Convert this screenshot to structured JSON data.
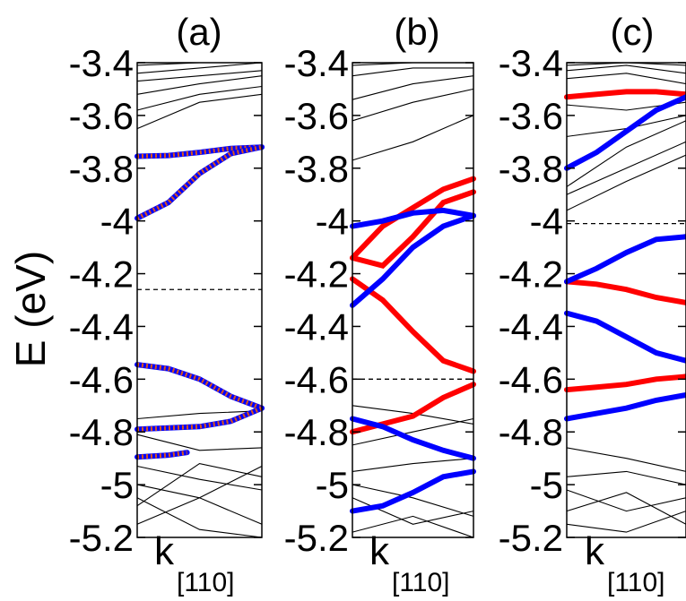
{
  "figure": {
    "ylabel": "E (eV)",
    "xlabel_main": "k",
    "xlabel_sub": "[110]"
  },
  "colors": {
    "red": "#ff0000",
    "blue": "#0000ff",
    "band": "#000000",
    "dotted_band": "#d9541e"
  },
  "chart_data": [
    {
      "type": "line",
      "panel": "(a)",
      "title": "(a)",
      "ylabel": "E (eV)",
      "xlabel": "k[110]",
      "ylim": [
        -5.2,
        -3.4
      ],
      "yticks": [
        -3.4,
        -3.6,
        -3.8,
        -4,
        -4.2,
        -4.4,
        -4.6,
        -4.8,
        -5,
        -5.2
      ],
      "ytick_labels": [
        "-3.4",
        "-3.6",
        "-3.8",
        "-4",
        "-4.2",
        "-4.4",
        "-4.6",
        "-4.8",
        "-5",
        "-5.2"
      ],
      "fermi_level": -4.26,
      "highlighted_bands": [
        {
          "color": "red+blue",
          "x": [
            0,
            0.25,
            0.5,
            0.75,
            1
          ],
          "y": [
            -3.755,
            -3.752,
            -3.74,
            -3.725,
            -3.72
          ]
        },
        {
          "color": "red+blue",
          "x": [
            0,
            0.25,
            0.5,
            0.75,
            1
          ],
          "y": [
            -3.99,
            -3.93,
            -3.82,
            -3.745,
            -3.72
          ]
        },
        {
          "color": "red+blue",
          "x": [
            0,
            0.25,
            0.5,
            0.75,
            1
          ],
          "y": [
            -4.545,
            -4.56,
            -4.6,
            -4.665,
            -4.71
          ]
        },
        {
          "color": "red+blue",
          "x": [
            0,
            0.25,
            0.5,
            0.75,
            1
          ],
          "y": [
            -4.79,
            -4.785,
            -4.78,
            -4.76,
            -4.71
          ]
        },
        {
          "color": "red+blue",
          "x": [
            0,
            0.12,
            0.25,
            0.4
          ],
          "y": [
            -4.895,
            -4.892,
            -4.888,
            -4.878
          ]
        }
      ],
      "bands": [
        {
          "x": [
            0,
            0.5,
            1
          ],
          "y": [
            -3.41,
            -3.4,
            -3.4
          ]
        },
        {
          "x": [
            0,
            0.5,
            1
          ],
          "y": [
            -3.44,
            -3.42,
            -3.4
          ]
        },
        {
          "x": [
            0,
            0.5,
            1
          ],
          "y": [
            -3.47,
            -3.45,
            -3.43
          ]
        },
        {
          "x": [
            0,
            0.5,
            1
          ],
          "y": [
            -3.52,
            -3.48,
            -3.45
          ]
        },
        {
          "x": [
            0,
            0.5,
            1
          ],
          "y": [
            -3.58,
            -3.52,
            -3.49
          ]
        },
        {
          "x": [
            0,
            0.5,
            1
          ],
          "y": [
            -3.65,
            -3.55,
            -3.52
          ]
        },
        {
          "x": [
            0,
            0.5,
            1
          ],
          "y": [
            -4.75,
            -4.73,
            -4.72
          ]
        },
        {
          "x": [
            0,
            0.5,
            1
          ],
          "y": [
            -4.81,
            -4.87,
            -4.86
          ]
        },
        {
          "x": [
            0,
            0.5,
            1
          ],
          "y": [
            -4.93,
            -4.98,
            -5.02
          ]
        },
        {
          "x": [
            0,
            0.5,
            1
          ],
          "y": [
            -5.0,
            -5.05,
            -5.15
          ]
        },
        {
          "x": [
            0,
            0.5,
            1
          ],
          "y": [
            -5.05,
            -5.17,
            -5.2
          ]
        },
        {
          "x": [
            0,
            0.5,
            1
          ],
          "y": [
            -5.08,
            -4.92,
            -4.97
          ]
        },
        {
          "x": [
            0,
            0.5,
            1
          ],
          "y": [
            -5.15,
            -5.05,
            -4.93
          ]
        }
      ]
    },
    {
      "type": "line",
      "panel": "(b)",
      "title": "(b)",
      "xlabel": "k[110]",
      "ylim": [
        -5.2,
        -3.4
      ],
      "yticks": [
        -3.4,
        -3.6,
        -3.8,
        -4,
        -4.2,
        -4.4,
        -4.6,
        -4.8,
        -5,
        -5.2
      ],
      "ytick_labels": [
        "-3.4",
        "-3.6",
        "-3.8",
        "-4",
        "-4.2",
        "-4.4",
        "-4.6",
        "-4.8",
        "-5",
        "-5.2"
      ],
      "fermi_level": -4.6,
      "highlighted_bands": [
        {
          "color": "red",
          "x": [
            0,
            0.25,
            0.5,
            0.75,
            1
          ],
          "y": [
            -4.14,
            -4.02,
            -3.95,
            -3.88,
            -3.84
          ]
        },
        {
          "color": "red",
          "x": [
            0,
            0.25,
            0.5,
            0.75,
            1
          ],
          "y": [
            -4.14,
            -4.17,
            -4.06,
            -3.93,
            -3.89
          ]
        },
        {
          "color": "red",
          "x": [
            0,
            0.25,
            0.5,
            0.75,
            1
          ],
          "y": [
            -4.22,
            -4.3,
            -4.42,
            -4.53,
            -4.57
          ]
        },
        {
          "color": "red",
          "x": [
            0,
            0.25,
            0.5,
            0.75,
            1
          ],
          "y": [
            -4.8,
            -4.77,
            -4.74,
            -4.67,
            -4.62
          ]
        },
        {
          "color": "blue",
          "x": [
            0,
            0.25,
            0.5,
            0.75,
            1
          ],
          "y": [
            -4.02,
            -4.0,
            -3.97,
            -3.96,
            -3.98
          ]
        },
        {
          "color": "blue",
          "x": [
            0,
            0.25,
            0.5,
            0.75,
            1
          ],
          "y": [
            -4.32,
            -4.22,
            -4.1,
            -4.02,
            -3.98
          ]
        },
        {
          "color": "blue",
          "x": [
            0,
            0.25,
            0.5,
            0.75,
            1
          ],
          "y": [
            -4.75,
            -4.78,
            -4.83,
            -4.87,
            -4.9
          ]
        },
        {
          "color": "blue",
          "x": [
            0,
            0.25,
            0.5,
            0.75,
            1
          ],
          "y": [
            -5.1,
            -5.08,
            -5.03,
            -4.97,
            -4.95
          ]
        }
      ],
      "bands": [
        {
          "x": [
            0,
            0.5,
            1
          ],
          "y": [
            -3.41,
            -3.4,
            -3.4
          ]
        },
        {
          "x": [
            0,
            0.5,
            1
          ],
          "y": [
            -3.45,
            -3.42,
            -3.42
          ]
        },
        {
          "x": [
            0,
            0.5,
            1
          ],
          "y": [
            -3.54,
            -3.48,
            -3.45
          ]
        },
        {
          "x": [
            0,
            0.5,
            1
          ],
          "y": [
            -3.62,
            -3.55,
            -3.5
          ]
        },
        {
          "x": [
            0,
            0.5,
            1
          ],
          "y": [
            -3.77,
            -3.7,
            -3.6
          ]
        },
        {
          "x": [
            0,
            0.5,
            1
          ],
          "y": [
            -4.7,
            -4.73,
            -4.77
          ]
        },
        {
          "x": [
            0,
            0.5,
            1
          ],
          "y": [
            -4.85,
            -4.8,
            -4.75
          ]
        },
        {
          "x": [
            0,
            0.5,
            1
          ],
          "y": [
            -4.95,
            -4.92,
            -4.9
          ]
        },
        {
          "x": [
            0,
            0.5,
            1
          ],
          "y": [
            -5.0,
            -5.05,
            -5.12
          ]
        },
        {
          "x": [
            0,
            0.5,
            1
          ],
          "y": [
            -5.05,
            -5.15,
            -5.1
          ]
        },
        {
          "x": [
            0,
            0.5,
            1
          ],
          "y": [
            -5.18,
            -5.12,
            -5.2
          ]
        }
      ]
    },
    {
      "type": "line",
      "panel": "(c)",
      "title": "(c)",
      "xlabel": "k[110]",
      "ylim": [
        -5.2,
        -3.4
      ],
      "yticks": [
        -3.4,
        -3.6,
        -3.8,
        -4,
        -4.2,
        -4.4,
        -4.6,
        -4.8,
        -5,
        -5.2
      ],
      "ytick_labels": [
        "-3.4",
        "-3.6",
        "-3.8",
        "-4",
        "-4.2",
        "-4.4",
        "-4.6",
        "-4.8",
        "-5",
        "-5.2"
      ],
      "fermi_level": -4.01,
      "highlighted_bands": [
        {
          "color": "red",
          "x": [
            0,
            0.25,
            0.5,
            0.75,
            1
          ],
          "y": [
            -3.53,
            -3.52,
            -3.51,
            -3.51,
            -3.52
          ]
        },
        {
          "color": "red",
          "x": [
            0,
            0.25,
            0.5,
            0.75,
            1
          ],
          "y": [
            -4.23,
            -4.24,
            -4.26,
            -4.29,
            -4.31
          ]
        },
        {
          "color": "red",
          "x": [
            0,
            0.25,
            0.5,
            0.75,
            1
          ],
          "y": [
            -4.64,
            -4.63,
            -4.62,
            -4.6,
            -4.59
          ]
        },
        {
          "color": "blue",
          "x": [
            0,
            0.25,
            0.5,
            0.75,
            1
          ],
          "y": [
            -3.8,
            -3.74,
            -3.66,
            -3.58,
            -3.53
          ]
        },
        {
          "color": "blue",
          "x": [
            0,
            0.25,
            0.5,
            0.75,
            1
          ],
          "y": [
            -4.23,
            -4.18,
            -4.12,
            -4.07,
            -4.06
          ]
        },
        {
          "color": "blue",
          "x": [
            0,
            0.25,
            0.5,
            0.75,
            1
          ],
          "y": [
            -4.35,
            -4.38,
            -4.44,
            -4.5,
            -4.53
          ]
        },
        {
          "color": "blue",
          "x": [
            0,
            0.25,
            0.5,
            0.75,
            1
          ],
          "y": [
            -4.75,
            -4.73,
            -4.71,
            -4.68,
            -4.66
          ]
        }
      ],
      "bands": [
        {
          "x": [
            0,
            0.5,
            1
          ],
          "y": [
            -3.41,
            -3.4,
            -3.41
          ]
        },
        {
          "x": [
            0,
            0.5,
            1
          ],
          "y": [
            -3.43,
            -3.41,
            -3.44
          ]
        },
        {
          "x": [
            0,
            0.5,
            1
          ],
          "y": [
            -3.46,
            -3.44,
            -3.48
          ]
        },
        {
          "x": [
            0,
            0.5,
            1
          ],
          "y": [
            -3.56,
            -3.58,
            -3.55
          ]
        },
        {
          "x": [
            0,
            0.5,
            1
          ],
          "y": [
            -3.68,
            -3.65,
            -3.6
          ]
        },
        {
          "x": [
            0,
            0.5,
            1
          ],
          "y": [
            -3.87,
            -3.72,
            -3.62
          ]
        },
        {
          "x": [
            0,
            0.5,
            1
          ],
          "y": [
            -3.9,
            -3.8,
            -3.7
          ]
        },
        {
          "x": [
            0,
            0.5,
            1
          ],
          "y": [
            -3.96,
            -3.85,
            -3.75
          ]
        },
        {
          "x": [
            0,
            0.5,
            1
          ],
          "y": [
            -4.86,
            -4.9,
            -4.95
          ]
        },
        {
          "x": [
            0,
            0.5,
            1
          ],
          "y": [
            -4.97,
            -4.95,
            -5.0
          ]
        },
        {
          "x": [
            0,
            0.5,
            1
          ],
          "y": [
            -5.02,
            -5.1,
            -5.05
          ]
        },
        {
          "x": [
            0,
            0.5,
            1
          ],
          "y": [
            -5.1,
            -5.03,
            -5.15
          ]
        },
        {
          "x": [
            0,
            0.5,
            1
          ],
          "y": [
            -5.15,
            -5.18,
            -5.1
          ]
        }
      ]
    }
  ]
}
